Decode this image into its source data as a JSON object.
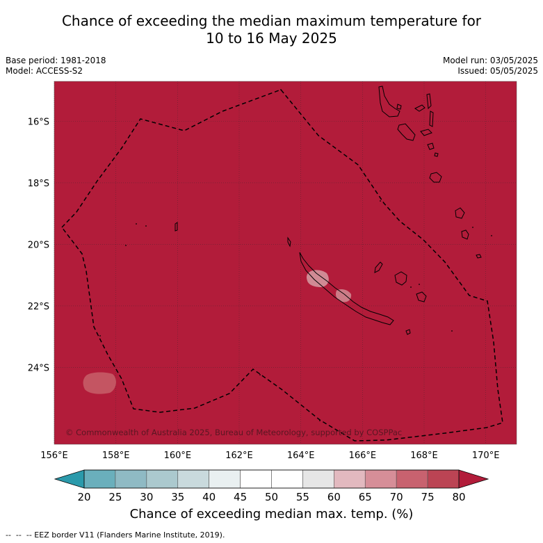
{
  "title": {
    "line1": "Chance of exceeding the median maximum temperature for",
    "line2": "10 to 16 May 2025"
  },
  "info": {
    "base_period": "Base period: 1981-2018",
    "model": "Model: ACCESS-S2",
    "model_run": "Model run: 03/05/2025",
    "issued": "Issued: 05/05/2025"
  },
  "map": {
    "background_color": "#b21c3a",
    "lon_range": [
      156,
      171
    ],
    "lat_range": [
      -26.5,
      -14.7
    ],
    "lon_ticks": [
      "156°E",
      "158°E",
      "160°E",
      "162°E",
      "164°E",
      "166°E",
      "168°E",
      "170°E"
    ],
    "lat_ticks": [
      "16°S",
      "18°S",
      "20°S",
      "22°S",
      "24°S"
    ],
    "gridlines": true,
    "copyright": "© Commonwealth of Australia 2025, Bureau of Meteorology, supported by COSPPac"
  },
  "colorbar": {
    "tick_labels": [
      "20",
      "25",
      "30",
      "35",
      "40",
      "45",
      "50",
      "55",
      "60",
      "65",
      "70",
      "75",
      "80"
    ],
    "colors": [
      "#2b9aab",
      "#6aafbc",
      "#8fbac4",
      "#abc9ce",
      "#c9dadd",
      "#e9f0f1",
      "#ffffff",
      "#ffffff",
      "#e6e6e6",
      "#e2b9bf",
      "#d68e98",
      "#c8626f",
      "#bb4454",
      "#b21c3a"
    ],
    "label": "Chance of exceeding median max. temp. (%)"
  },
  "legend": {
    "eez": "-- EEZ border V11 (Flanders Marine Institute, 2019)."
  }
}
